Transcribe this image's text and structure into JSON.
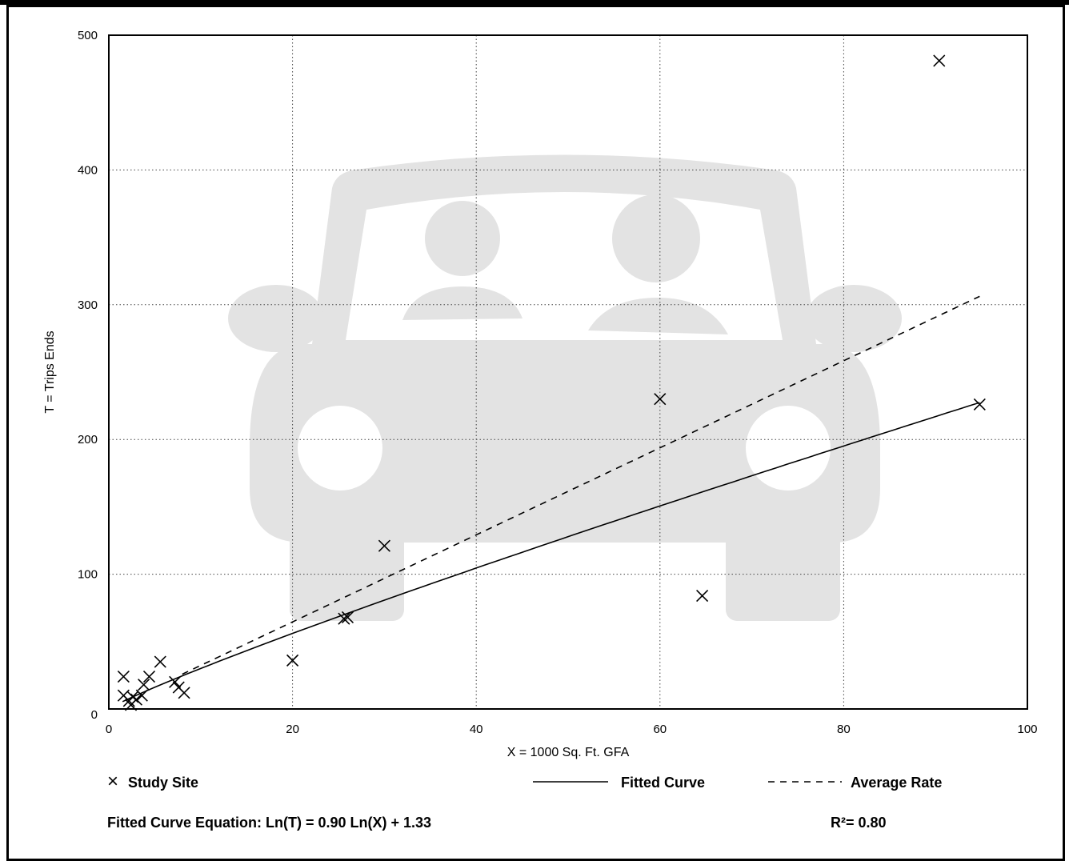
{
  "chart_data": {
    "type": "scatter",
    "title": "",
    "xlabel": "X = 1000 Sq. Ft. GFA",
    "ylabel": "T = Trips Ends",
    "xlim": [
      0,
      100
    ],
    "ylim": [
      0,
      500
    ],
    "x_ticks": [
      0,
      20,
      40,
      60,
      80,
      100
    ],
    "y_ticks": [
      0,
      100,
      200,
      300,
      400,
      500
    ],
    "grid": "dotted",
    "series": [
      {
        "name": "Study Site",
        "marker": "x",
        "points": [
          [
            1.6,
            24
          ],
          [
            1.6,
            10
          ],
          [
            2.2,
            6
          ],
          [
            2.4,
            3
          ],
          [
            2.6,
            9
          ],
          [
            3.0,
            7
          ],
          [
            3.6,
            10
          ],
          [
            3.8,
            18
          ],
          [
            4.4,
            24
          ],
          [
            5.6,
            35
          ],
          [
            7.2,
            20
          ],
          [
            7.6,
            16
          ],
          [
            8.2,
            12
          ],
          [
            20.0,
            36
          ],
          [
            25.6,
            67
          ],
          [
            26.0,
            68
          ],
          [
            30.0,
            121
          ],
          [
            60.0,
            230
          ],
          [
            64.6,
            84
          ],
          [
            90.4,
            481
          ],
          [
            94.8,
            226
          ]
        ]
      },
      {
        "name": "Fitted Curve",
        "style": "solid",
        "equation": {
          "a": 0.9,
          "b": 1.33
        },
        "x_range": [
          1.5,
          94.8
        ]
      },
      {
        "name": "Average Rate",
        "style": "dashed",
        "rate": 3.23,
        "x_range": [
          8,
          94.8
        ]
      }
    ],
    "legend": [
      {
        "marker": "×",
        "label": "Study Site"
      },
      {
        "marker": "solid-line",
        "label": "Fitted Curve"
      },
      {
        "marker": "dashed-line",
        "label": "Average Rate"
      }
    ],
    "annotations": {
      "equation": "Fitted Curve Equation: Ln(T) = 0.90 Ln(X) + 1.33",
      "r_squared": "R²= 0.80"
    },
    "watermark": "car-with-two-people-icon",
    "colors": {
      "marks": "#000000",
      "watermark": "#e3e3e3",
      "grid": "#444444"
    }
  }
}
